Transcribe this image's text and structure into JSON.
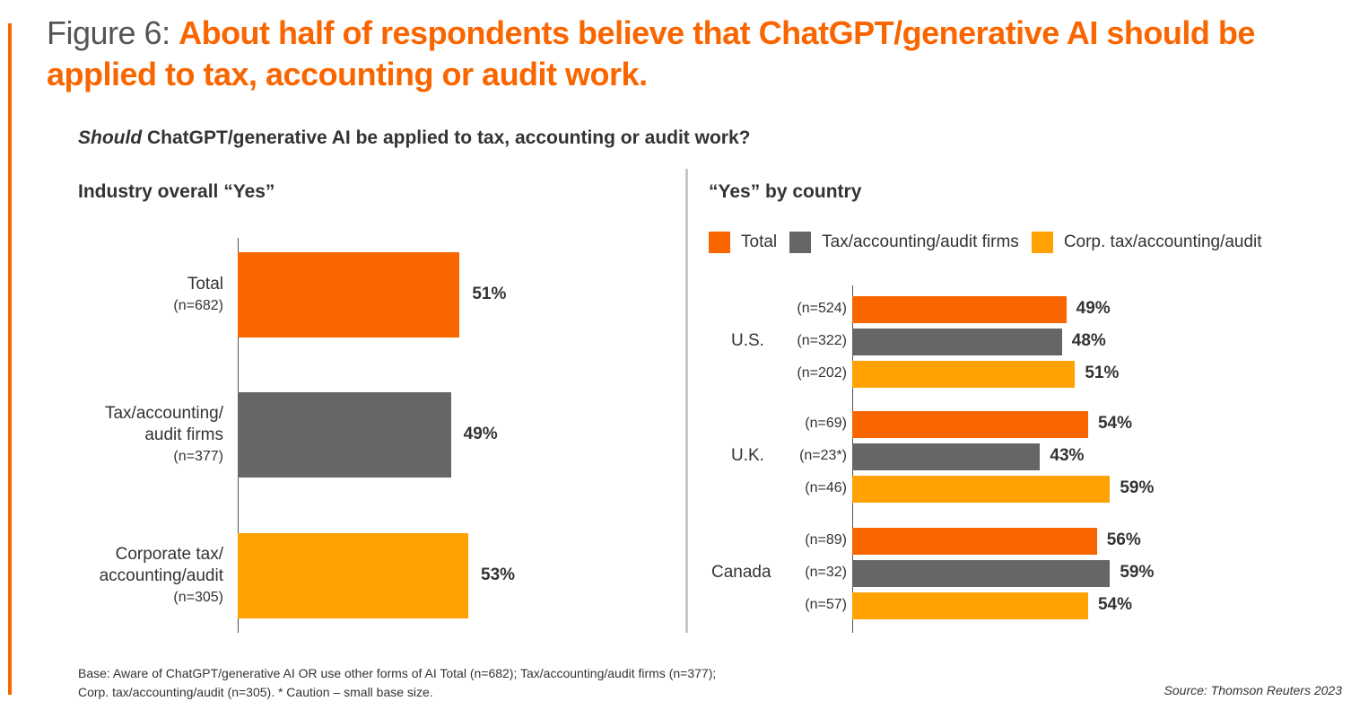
{
  "title": {
    "prefix": "Figure 6: ",
    "text": "About half of respondents believe that ChatGPT/generative AI should be applied to tax, accounting or audit work."
  },
  "question": {
    "italic": "Should",
    "rest": " ChatGPT/generative AI be applied to tax, accounting or audit work?"
  },
  "colors": {
    "total": "#f96600",
    "firms": "#666666",
    "corp": "#ffa100",
    "accent": "#f96600"
  },
  "chart_data": [
    {
      "type": "bar",
      "orientation": "horizontal",
      "title": "Industry overall “Yes”",
      "categories": [
        {
          "label_lines": [
            "Total"
          ],
          "n": "(n=682)"
        },
        {
          "label_lines": [
            "Tax/accounting/",
            "audit firms"
          ],
          "n": "(n=377)"
        },
        {
          "label_lines": [
            "Corporate tax/",
            "accounting/audit"
          ],
          "n": "(n=305)"
        }
      ],
      "values": [
        51,
        49,
        53
      ],
      "data_labels": [
        "51%",
        "49%",
        "53%"
      ],
      "bar_colors": [
        "#f96600",
        "#666666",
        "#ffa100"
      ],
      "xlim": [
        0,
        100
      ],
      "grid": false
    },
    {
      "type": "bar",
      "orientation": "horizontal",
      "title": "“Yes” by country",
      "legend_position": "top",
      "legend": [
        "Total",
        "Tax/accounting/audit firms",
        "Corp. tax/accounting/audit"
      ],
      "groups": [
        {
          "label": "U.S.",
          "n": [
            "(n=524)",
            "(n=322)",
            "(n=202)"
          ],
          "values": [
            49,
            48,
            51
          ],
          "data_labels": [
            "49%",
            "48%",
            "51%"
          ]
        },
        {
          "label": "U.K.",
          "n": [
            "(n=69)",
            "(n=23*)",
            "(n=46)"
          ],
          "values": [
            54,
            43,
            59
          ],
          "data_labels": [
            "54%",
            "43%",
            "59%"
          ]
        },
        {
          "label": "Canada",
          "n": [
            "(n=89)",
            "(n=32)",
            "(n=57)"
          ],
          "values": [
            56,
            59,
            54
          ],
          "data_labels": [
            "56%",
            "59%",
            "54%"
          ]
        }
      ],
      "xlim": [
        0,
        100
      ],
      "grid": false
    }
  ],
  "footnote": {
    "line1": "Base: Aware of ChatGPT/generative AI OR use other forms of AI Total (n=682); Tax/accounting/audit firms (n=377);",
    "line2": "Corp. tax/accounting/audit (n=305). * Caution – small base size."
  },
  "source": "Source: Thomson Reuters 2023"
}
